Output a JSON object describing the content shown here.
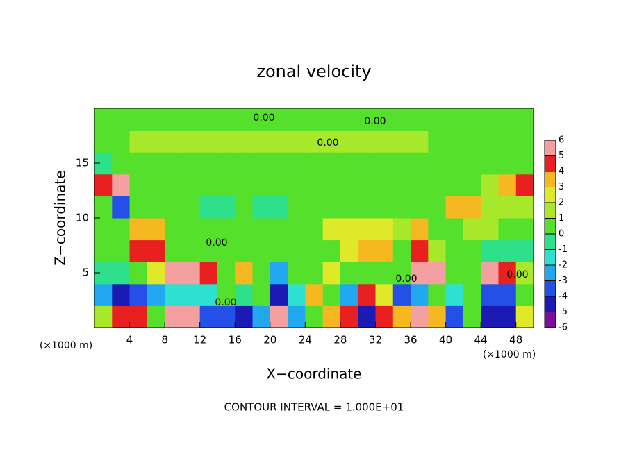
{
  "chart_data": {
    "type": "contour",
    "title": "zonal velocity",
    "x_label": "X−coordinate",
    "y_label": "Z−coordinate",
    "x_unit_left": "(×1000 m)",
    "x_unit_right": "(×1000 m)",
    "footer": "CONTOUR INTERVAL = 1.000E+01",
    "contour_labels": [
      "0.00",
      "0.00",
      "0.00",
      "0.00",
      "0.00",
      "0.00",
      "0.00"
    ],
    "xlim": [
      0,
      50
    ],
    "xticks": [
      4,
      8,
      12,
      16,
      20,
      24,
      28,
      32,
      36,
      40,
      44,
      48
    ],
    "ylim": [
      0,
      20
    ],
    "yticks": [
      5,
      10,
      15
    ],
    "clim": [
      -6,
      6
    ],
    "cticks": [
      -6,
      -5,
      -4,
      -3,
      -2,
      -1,
      0,
      1,
      2,
      3,
      4,
      5,
      6
    ],
    "colors": [
      "#7a0f9c",
      "#1c1ab4",
      "#2450e8",
      "#22a8f0",
      "#2ee0d0",
      "#2ee08a",
      "#55e02c",
      "#a8e82a",
      "#e0e82a",
      "#f5b820",
      "#e82020",
      "#f4a0a0"
    ],
    "z": [
      [
        1,
        4,
        4,
        0,
        5,
        5,
        -4,
        -4,
        -5,
        -3,
        5,
        -3,
        0,
        3,
        4,
        -5,
        4,
        3,
        5,
        3,
        -4,
        0,
        -5,
        -5,
        2
      ],
      [
        -3,
        -5,
        -4,
        -3,
        -2,
        -2,
        -2,
        0,
        -1,
        0,
        -5,
        -2,
        3,
        0,
        -3,
        4,
        2,
        -4,
        -3,
        0,
        -2,
        0,
        -4,
        -4,
        0
      ],
      [
        -1,
        -1,
        0,
        2,
        5,
        5,
        4,
        0,
        3,
        0,
        -3,
        0,
        0,
        2,
        0,
        0,
        0,
        0,
        5,
        5,
        0,
        0,
        5,
        4,
        1
      ],
      [
        0,
        0,
        4,
        4,
        0,
        0,
        0,
        0,
        0,
        0,
        0,
        0,
        0,
        0,
        2,
        3,
        3,
        0,
        4,
        1,
        0,
        0,
        -1,
        -1,
        -1
      ],
      [
        0,
        0,
        3,
        3,
        0,
        0,
        0,
        0,
        0,
        0,
        0,
        0,
        0,
        2,
        2,
        2,
        2,
        1,
        3,
        0,
        0,
        1,
        1,
        0,
        0
      ],
      [
        0,
        -4,
        0,
        0,
        0,
        0,
        -1,
        -1,
        0,
        -1,
        -1,
        0,
        0,
        0,
        0,
        0,
        0,
        0,
        0,
        0,
        3,
        3,
        1,
        1,
        1
      ],
      [
        4,
        5,
        0,
        0,
        0,
        0,
        0,
        0,
        0,
        0,
        0,
        0,
        0,
        0,
        0,
        0,
        0,
        0,
        0,
        0,
        0,
        0,
        1,
        3,
        4
      ],
      [
        -1,
        0,
        0,
        0,
        0,
        0,
        0,
        0,
        0,
        0,
        0,
        0,
        0,
        0,
        0,
        0,
        0,
        0,
        0,
        0,
        0,
        0,
        0,
        0,
        0
      ],
      [
        0,
        0,
        1,
        1,
        1,
        1,
        1,
        1,
        1,
        1,
        1,
        1,
        1,
        1,
        1,
        1,
        1,
        1,
        1,
        0,
        0,
        0,
        0,
        0,
        0
      ],
      [
        0,
        0,
        0,
        0,
        0,
        0,
        0,
        0,
        0,
        0,
        0,
        0,
        0,
        0,
        0,
        0,
        0,
        0,
        0,
        0,
        0,
        0,
        0,
        0,
        0
      ]
    ]
  }
}
